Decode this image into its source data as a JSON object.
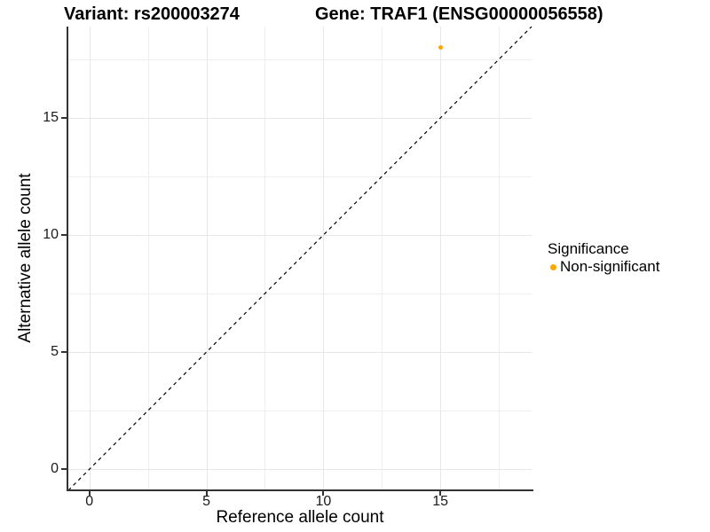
{
  "chart_data": {
    "type": "scatter",
    "title_left": "Variant: rs200003274",
    "title_right": "Gene: TRAF1 (ENSG00000056558)",
    "xlabel": "Reference allele count",
    "ylabel": "Alternative allele count",
    "xlim": [
      -0.9,
      18.9
    ],
    "ylim": [
      -0.9,
      18.9
    ],
    "x_ticks": [
      0,
      5,
      10,
      15
    ],
    "y_ticks": [
      0,
      5,
      10,
      15
    ],
    "x_minor_gridlines": [
      2.5,
      7.5,
      12.5,
      17.5
    ],
    "y_minor_gridlines": [
      2.5,
      7.5,
      12.5,
      17.5
    ],
    "grid": true,
    "series": [
      {
        "name": "Non-significant",
        "color": "#FFA500",
        "points": [
          {
            "x": 15,
            "y": 18
          }
        ]
      }
    ],
    "reference_line": {
      "type": "identity",
      "from": [
        -0.9,
        -0.9
      ],
      "to": [
        18.9,
        18.9
      ],
      "style": "dashed",
      "color": "#000000"
    },
    "legend": {
      "title": "Significance",
      "position": "right",
      "items": [
        {
          "label": "Non-significant",
          "color": "#FFA500"
        }
      ]
    },
    "colors": {
      "background": "#ffffff",
      "panel_background": "#ffffff",
      "axis_line": "#333333",
      "major_gridline": "#e7e7e7",
      "minor_gridline": "#efefef",
      "point": "#FFA500"
    }
  }
}
